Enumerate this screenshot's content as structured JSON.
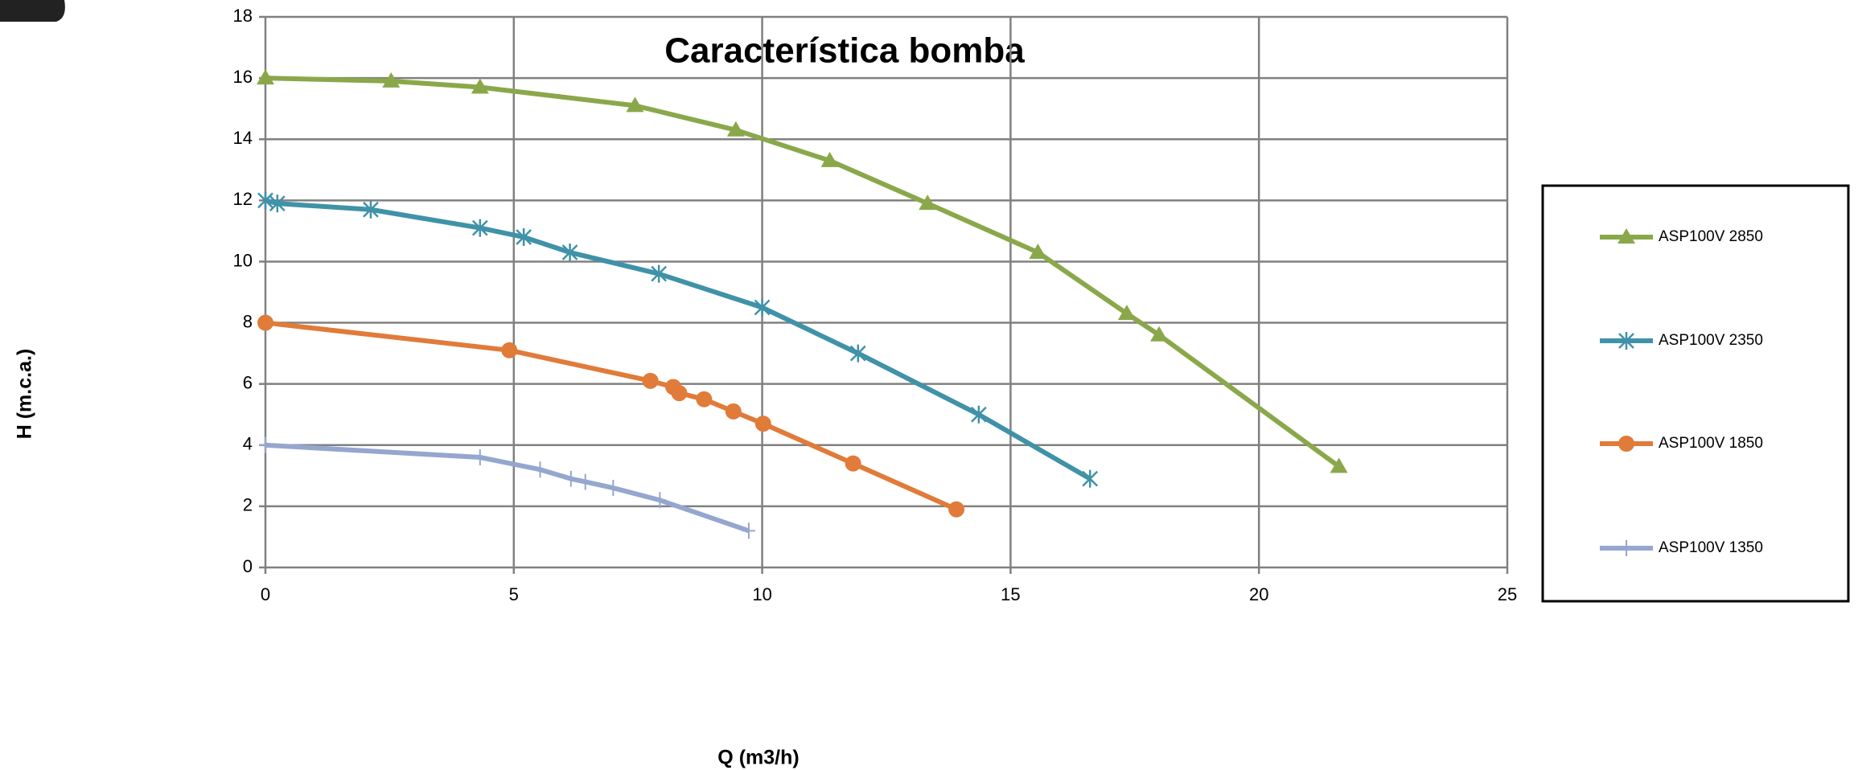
{
  "chart_data": {
    "type": "line",
    "title": "Característica bomba",
    "x_label": "Q (m3/h)",
    "y_label": "H (m.c.a.)",
    "xlim": [
      0,
      25
    ],
    "xticks": [
      0,
      5,
      10,
      15,
      20,
      25
    ],
    "ylim": [
      0,
      18
    ],
    "yticks": [
      0,
      2,
      4,
      6,
      8,
      10,
      12,
      14,
      16,
      18
    ],
    "grid": true,
    "legend": "right",
    "series": [
      {
        "name": "ASP100V 2850",
        "color": "#8aa84a",
        "marker": "triangle",
        "x": [
          0,
          2.53,
          4.32,
          7.44,
          9.47,
          11.36,
          13.33,
          15.55,
          17.34,
          17.99,
          21.61
        ],
        "values": [
          16.0,
          15.9,
          15.7,
          15.1,
          14.3,
          13.3,
          11.9,
          10.3,
          8.3,
          7.6,
          3.3
        ]
      },
      {
        "name": "ASP100V 2350",
        "color": "#3f92a8",
        "marker": "asterisk",
        "x": [
          0,
          0.24,
          2.12,
          4.32,
          5.2,
          6.13,
          7.92,
          10.0,
          11.93,
          14.36,
          16.6
        ],
        "values": [
          12.0,
          11.9,
          11.7,
          11.1,
          10.8,
          10.3,
          9.6,
          8.5,
          7.0,
          5.0,
          2.9
        ]
      },
      {
        "name": "ASP100V 1850",
        "color": "#e07b39",
        "marker": "circle",
        "x": [
          0,
          4.91,
          7.75,
          8.21,
          8.33,
          8.83,
          9.42,
          10.02,
          11.83,
          13.91
        ],
        "values": [
          8.0,
          7.1,
          6.1,
          5.9,
          5.7,
          5.5,
          5.1,
          4.7,
          3.4,
          1.9
        ]
      },
      {
        "name": "ASP100V 1350",
        "color": "#95a6cf",
        "marker": "tick",
        "x": [
          0,
          4.32,
          5.53,
          6.15,
          6.44,
          7.0,
          7.94,
          9.73
        ],
        "values": [
          4.0,
          3.6,
          3.2,
          2.9,
          2.8,
          2.6,
          2.2,
          1.2
        ]
      }
    ]
  }
}
